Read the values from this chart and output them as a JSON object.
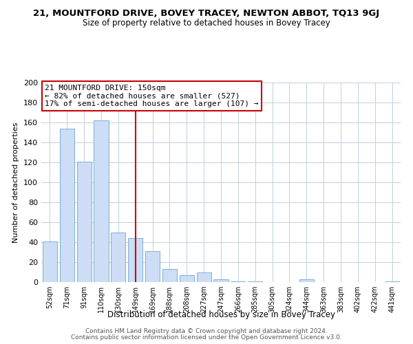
{
  "title": "21, MOUNTFORD DRIVE, BOVEY TRACEY, NEWTON ABBOT, TQ13 9GJ",
  "subtitle": "Size of property relative to detached houses in Bovey Tracey",
  "xlabel": "Distribution of detached houses by size in Bovey Tracey",
  "ylabel": "Number of detached properties",
  "categories": [
    "52sqm",
    "71sqm",
    "91sqm",
    "110sqm",
    "130sqm",
    "149sqm",
    "169sqm",
    "188sqm",
    "208sqm",
    "227sqm",
    "247sqm",
    "266sqm",
    "285sqm",
    "305sqm",
    "324sqm",
    "344sqm",
    "363sqm",
    "383sqm",
    "402sqm",
    "422sqm",
    "441sqm"
  ],
  "values": [
    41,
    154,
    121,
    162,
    50,
    44,
    31,
    13,
    7,
    10,
    3,
    1,
    1,
    0,
    0,
    3,
    0,
    0,
    0,
    0,
    1
  ],
  "bar_color": "#ccddf5",
  "bar_edge_color": "#7bafd4",
  "marker_index": 5,
  "annotation_title": "21 MOUNTFORD DRIVE: 150sqm",
  "annotation_line1": "← 82% of detached houses are smaller (527)",
  "annotation_line2": "17% of semi-detached houses are larger (107) →",
  "marker_color": "#cc0000",
  "ylim": [
    0,
    200
  ],
  "yticks": [
    0,
    20,
    40,
    60,
    80,
    100,
    120,
    140,
    160,
    180,
    200
  ],
  "footnote1": "Contains HM Land Registry data © Crown copyright and database right 2024.",
  "footnote2": "Contains public sector information licensed under the Open Government Licence v3.0.",
  "background_color": "#ffffff",
  "grid_color": "#c0cfe0"
}
